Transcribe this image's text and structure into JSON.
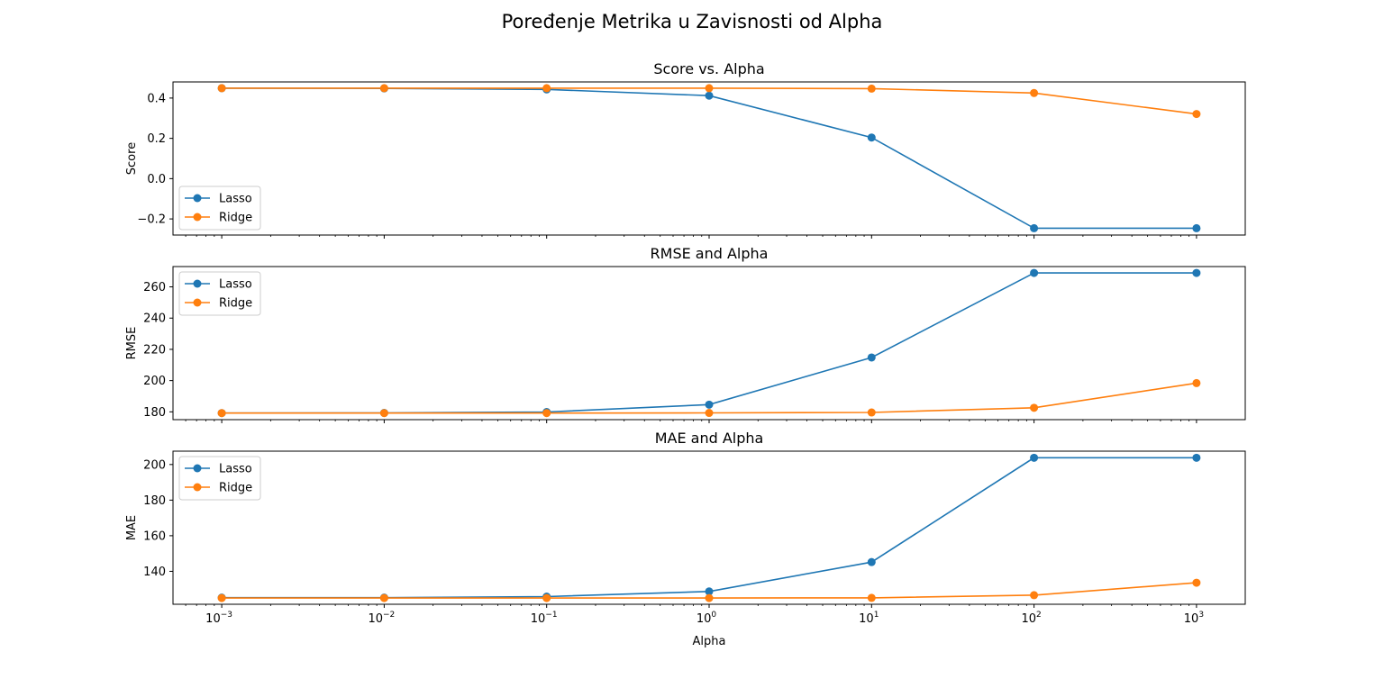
{
  "figure": {
    "title": "Poređenje Metrika u Zavisnosti od Alpha",
    "xlabel": "Alpha"
  },
  "colors": {
    "Lasso": "#1f77b4",
    "Ridge": "#ff7f0e"
  },
  "x_tick_labels": [
    {
      "base": "10",
      "exp": "−3"
    },
    {
      "base": "10",
      "exp": "−2"
    },
    {
      "base": "10",
      "exp": "−1"
    },
    {
      "base": "10",
      "exp": "0"
    },
    {
      "base": "10",
      "exp": "1"
    },
    {
      "base": "10",
      "exp": "2"
    },
    {
      "base": "10",
      "exp": "3"
    }
  ],
  "chart_data": [
    {
      "type": "line",
      "title": "Score vs. Alpha",
      "xlabel": "Alpha",
      "ylabel": "Score",
      "xscale": "log",
      "x": [
        0.001,
        0.01,
        0.1,
        1,
        10,
        100,
        1000
      ],
      "xlim": [
        0.001,
        1000
      ],
      "ylim": [
        -0.28,
        0.48
      ],
      "yticks": [
        -0.2,
        0.0,
        0.2,
        0.4
      ],
      "ytick_labels": [
        "−0.2",
        "0.0",
        "0.2",
        "0.4"
      ],
      "legend": "lower-left",
      "grid": false,
      "series": [
        {
          "name": "Lasso",
          "values": [
            0.449,
            0.448,
            0.443,
            0.412,
            0.204,
            -0.246,
            -0.246
          ]
        },
        {
          "name": "Ridge",
          "values": [
            0.449,
            0.449,
            0.449,
            0.449,
            0.447,
            0.425,
            0.321
          ]
        }
      ]
    },
    {
      "type": "line",
      "title": "RMSE and Alpha",
      "xlabel": "Alpha",
      "ylabel": "RMSE",
      "xscale": "log",
      "x": [
        0.001,
        0.01,
        0.1,
        1,
        10,
        100,
        1000
      ],
      "xlim": [
        0.001,
        1000
      ],
      "ylim": [
        175,
        273
      ],
      "yticks": [
        180,
        200,
        220,
        240,
        260
      ],
      "ytick_labels": [
        "180",
        "200",
        "220",
        "240",
        "260"
      ],
      "legend": "upper-left",
      "grid": false,
      "series": [
        {
          "name": "Lasso",
          "values": [
            179.2,
            179.3,
            179.9,
            184.6,
            214.8,
            268.9,
            268.9
          ]
        },
        {
          "name": "Ridge",
          "values": [
            179.2,
            179.2,
            179.2,
            179.3,
            179.6,
            182.6,
            198.4
          ]
        }
      ]
    },
    {
      "type": "line",
      "title": "MAE and Alpha",
      "xlabel": "Alpha",
      "ylabel": "MAE",
      "xscale": "log",
      "x": [
        0.001,
        0.01,
        0.1,
        1,
        10,
        100,
        1000
      ],
      "xlim": [
        0.001,
        1000
      ],
      "ylim": [
        121.5,
        207.5
      ],
      "yticks": [
        140,
        160,
        180,
        200
      ],
      "ytick_labels": [
        "140",
        "160",
        "180",
        "200"
      ],
      "legend": "upper-left",
      "grid": false,
      "series": [
        {
          "name": "Lasso",
          "values": [
            125.2,
            125.2,
            125.8,
            128.7,
            145.2,
            203.8,
            203.8
          ]
        },
        {
          "name": "Ridge",
          "values": [
            125.0,
            125.0,
            125.0,
            125.0,
            125.1,
            126.6,
            133.6
          ]
        }
      ]
    }
  ]
}
